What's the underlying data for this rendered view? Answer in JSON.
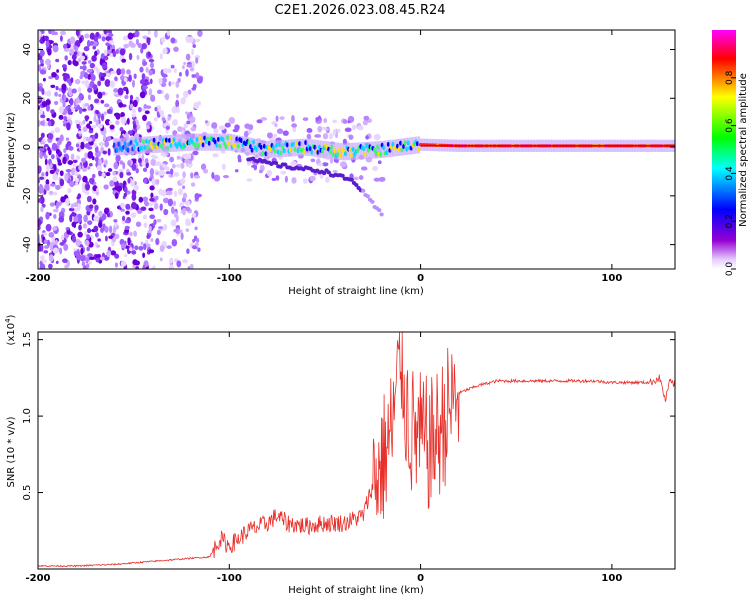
{
  "title": "C2E1.2026.023.08.45.R24",
  "chart_data": [
    {
      "type": "heatmap",
      "xlabel": "Height of straight line (km)",
      "ylabel": "Frequency (Hz)",
      "xlim": [
        -200,
        133
      ],
      "ylim": [
        -50,
        48
      ],
      "xticks": [
        -200,
        -100,
        0,
        100
      ],
      "yticks": [
        -40,
        -20,
        0,
        20,
        40
      ],
      "colorbar": {
        "label": "Normalized spectral amplitude",
        "range": [
          0,
          1
        ],
        "ticks": [
          0.0,
          0.2,
          0.4,
          0.6,
          0.8
        ],
        "tick_labels": [
          "0.0",
          "0.2",
          "0.4",
          "0.6",
          "0.8"
        ],
        "colormap": [
          "#ffffff",
          "#9400d3",
          "#0000ff",
          "#00ffff",
          "#00ff00",
          "#ffff00",
          "#ff0000",
          "#ff00ff"
        ]
      },
      "central_trace": [
        {
          "x": -160,
          "y": 0
        },
        {
          "x": -140,
          "y": 1
        },
        {
          "x": -120,
          "y": 2
        },
        {
          "x": -100,
          "y": 2
        },
        {
          "x": -80,
          "y": -1
        },
        {
          "x": -60,
          "y": 0
        },
        {
          "x": -40,
          "y": -2
        },
        {
          "x": -20,
          "y": -1
        },
        {
          "x": 0,
          "y": 1
        },
        {
          "x": 20,
          "y": 0.5
        },
        {
          "x": 60,
          "y": 0.5
        },
        {
          "x": 100,
          "y": 0.5
        },
        {
          "x": 133,
          "y": 0.5
        }
      ],
      "secondary_trace": [
        {
          "x": -90,
          "y": -5
        },
        {
          "x": -70,
          "y": -8
        },
        {
          "x": -50,
          "y": -10
        },
        {
          "x": -35,
          "y": -14
        },
        {
          "x": -20,
          "y": -28
        }
      ]
    },
    {
      "type": "line",
      "xlabel": "Height of straight line (km)",
      "ylabel": "SNR (10 * v/v)",
      "y_multiplier_label": "(x10",
      "y_multiplier_exp": "4",
      "y_multiplier_close": ")",
      "xlim": [
        -200,
        133
      ],
      "ylim": [
        0,
        1.55
      ],
      "xticks": [
        -200,
        -100,
        0,
        100
      ],
      "yticks": [
        0.5,
        1.0,
        1.5
      ],
      "ytick_labels": [
        "0.5",
        "1.0",
        "1.5"
      ],
      "line_color": "#e8302a",
      "series": [
        {
          "x": [
            -200,
            -180,
            -160,
            -140,
            -120,
            -110,
            -105,
            -100,
            -90,
            -80,
            -75,
            -70,
            -60,
            -50,
            -40,
            -30,
            -25,
            -20,
            -15,
            -12,
            -10,
            -8,
            -5,
            0,
            5,
            10,
            15,
            20,
            30,
            40,
            50,
            70,
            90,
            100,
            110,
            120,
            125,
            128,
            130,
            133
          ],
          "y": [
            0.02,
            0.02,
            0.03,
            0.05,
            0.07,
            0.08,
            0.2,
            0.15,
            0.25,
            0.3,
            0.35,
            0.3,
            0.28,
            0.3,
            0.3,
            0.35,
            0.55,
            0.7,
            0.9,
            1.2,
            1.4,
            1.1,
            0.9,
            0.85,
            0.8,
            0.9,
            1.05,
            1.15,
            1.2,
            1.23,
            1.23,
            1.23,
            1.23,
            1.22,
            1.22,
            1.22,
            1.25,
            1.1,
            1.22,
            1.21
          ]
        }
      ]
    }
  ]
}
